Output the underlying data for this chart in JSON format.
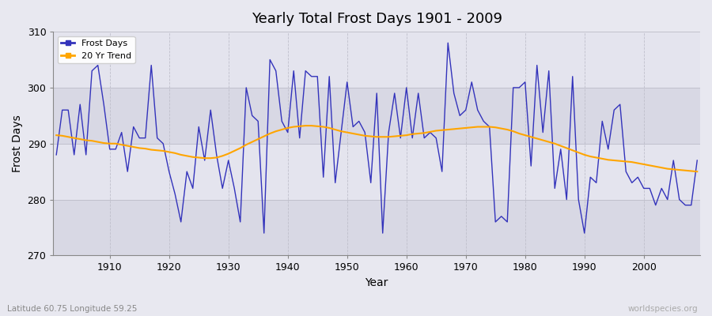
{
  "title": "Yearly Total Frost Days 1901 - 2009",
  "xlabel": "Year",
  "ylabel": "Frost Days",
  "ylim": [
    270,
    310
  ],
  "xlim": [
    1901,
    2009
  ],
  "yticks": [
    270,
    280,
    290,
    300,
    310
  ],
  "xticks": [
    1910,
    1920,
    1930,
    1940,
    1950,
    1960,
    1970,
    1980,
    1990,
    2000
  ],
  "line_color": "#3333bb",
  "trend_color": "#ffa500",
  "bg_color": "#e8e8f0",
  "plot_bg": "#dcdce8",
  "band_light": "#e4e4ee",
  "band_dark": "#d8d8e4",
  "grid_color": "#ffffff",
  "legend_labels": [
    "Frost Days",
    "20 Yr Trend"
  ],
  "watermark": "worldspecies.org",
  "caption": "Latitude 60.75 Longitude 59.25",
  "frost_days": [
    288,
    296,
    296,
    288,
    297,
    288,
    303,
    304,
    297,
    289,
    289,
    292,
    285,
    293,
    291,
    291,
    304,
    291,
    290,
    285,
    281,
    276,
    285,
    282,
    293,
    287,
    296,
    288,
    282,
    287,
    282,
    276,
    300,
    295,
    294,
    274,
    305,
    303,
    294,
    292,
    303,
    291,
    303,
    302,
    302,
    284,
    302,
    283,
    292,
    301,
    293,
    294,
    292,
    283,
    299,
    274,
    292,
    299,
    291,
    300,
    291,
    299,
    291,
    292,
    291,
    285,
    308,
    299,
    295,
    296,
    301,
    296,
    294,
    293,
    276,
    277,
    276,
    300,
    300,
    301,
    286,
    304,
    292,
    303,
    282,
    289,
    280,
    302,
    280,
    274,
    284,
    283,
    294,
    289,
    296,
    297,
    285,
    283,
    284,
    282,
    282,
    279,
    282,
    280,
    287,
    280,
    279,
    279,
    287
  ],
  "trend_days": [
    291.5,
    291.4,
    291.2,
    291.0,
    290.8,
    290.6,
    290.5,
    290.3,
    290.1,
    290.0,
    290.0,
    289.8,
    289.6,
    289.4,
    289.2,
    289.1,
    288.9,
    288.8,
    288.7,
    288.5,
    288.3,
    288.0,
    287.8,
    287.6,
    287.5,
    287.4,
    287.4,
    287.5,
    287.8,
    288.2,
    288.7,
    289.2,
    289.8,
    290.3,
    290.8,
    291.3,
    291.8,
    292.2,
    292.5,
    292.8,
    293.0,
    293.1,
    293.2,
    293.2,
    293.1,
    293.0,
    292.8,
    292.5,
    292.2,
    292.0,
    291.8,
    291.6,
    291.4,
    291.3,
    291.2,
    291.2,
    291.2,
    291.3,
    291.4,
    291.5,
    291.7,
    291.8,
    291.9,
    292.1,
    292.3,
    292.4,
    292.5,
    292.6,
    292.7,
    292.8,
    292.9,
    293.0,
    293.0,
    293.0,
    292.9,
    292.7,
    292.5,
    292.2,
    291.8,
    291.5,
    291.2,
    290.9,
    290.6,
    290.3,
    290.0,
    289.6,
    289.2,
    288.8,
    288.4,
    288.0,
    287.7,
    287.5,
    287.3,
    287.1,
    287.0,
    286.9,
    286.8,
    286.7,
    286.5,
    286.3,
    286.1,
    285.9,
    285.7,
    285.5,
    285.4,
    285.3,
    285.2,
    285.1,
    285.0
  ]
}
